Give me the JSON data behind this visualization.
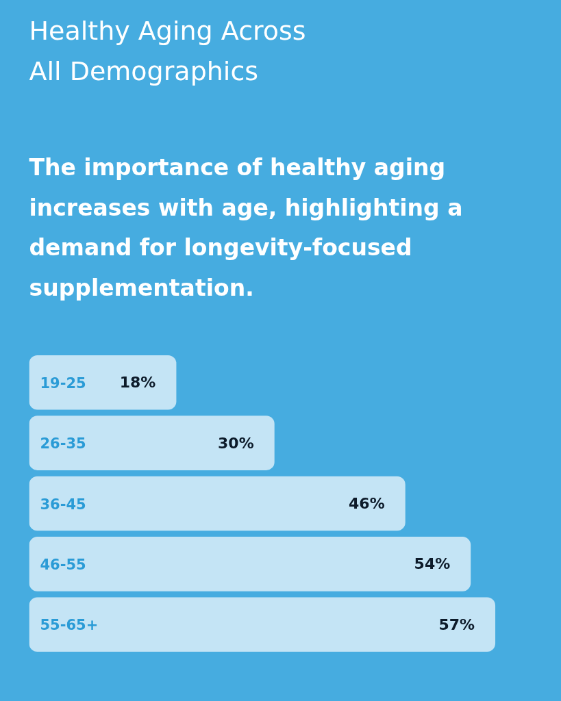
{
  "chart_data": {
    "type": "bar",
    "orientation": "horizontal",
    "title": "Healthy Aging Across All Demographics",
    "subtitle": "The importance of healthy aging increases with age, highlighting a demand for longevity-focused supplementation.",
    "categories": [
      "19-25",
      "26-35",
      "36-45",
      "46-55",
      "55-65+"
    ],
    "values": [
      18,
      30,
      46,
      54,
      57
    ],
    "value_labels": [
      "18%",
      "30%",
      "46%",
      "54%",
      "57%"
    ],
    "color": "#c4e4f5",
    "tick_labels": "y"
  }
}
